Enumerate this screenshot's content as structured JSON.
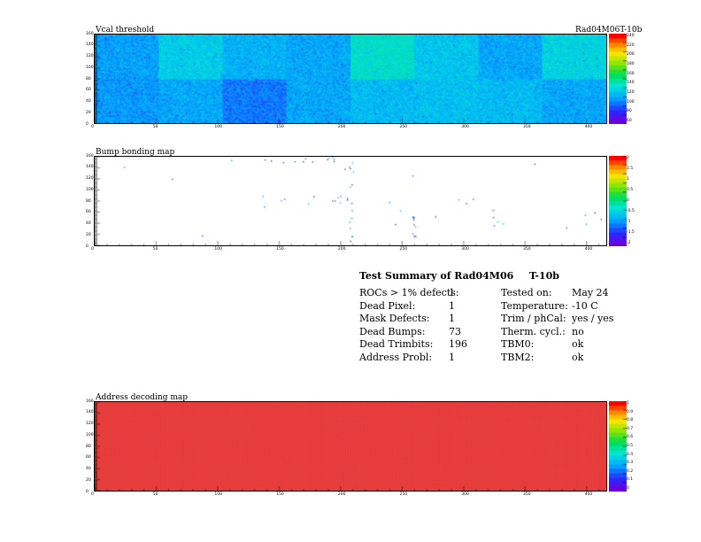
{
  "plots": {
    "vcal": {
      "title": "Vcal threshold",
      "run_label": "Rad04M06T-10b",
      "x_ticks": [
        "0",
        "50",
        "100",
        "150",
        "200",
        "250",
        "300",
        "350",
        "400"
      ],
      "y_ticks": [
        "0",
        "20",
        "40",
        "60",
        "80",
        "100",
        "120",
        "140",
        "160"
      ],
      "palette_labels": [
        "240",
        "220",
        "200",
        "180",
        "160",
        "140",
        "120",
        "100",
        "80",
        "60"
      ]
    },
    "bump": {
      "title": "Bump bonding map",
      "x_ticks": [
        "0",
        "50",
        "100",
        "150",
        "200",
        "250",
        "300",
        "350",
        "400"
      ],
      "y_ticks": [
        "0",
        "20",
        "40",
        "60",
        "80",
        "100",
        "120",
        "140",
        "160"
      ],
      "palette_labels": [
        "2",
        "1.5",
        "1",
        "0.5",
        "0",
        "-0.5",
        "-1",
        "-1.5",
        "-2"
      ]
    },
    "address": {
      "title": "Address decoding map",
      "x_ticks": [
        "0",
        "50",
        "100",
        "150",
        "200",
        "250",
        "300",
        "350",
        "400"
      ],
      "y_ticks": [
        "0",
        "20",
        "40",
        "60",
        "80",
        "100",
        "120",
        "140",
        "160"
      ],
      "palette_labels": [
        "1",
        "0.9",
        "0.8",
        "0.7",
        "0.6",
        "0.5",
        "0.4",
        "0.3",
        "0.2",
        "0.1",
        "0"
      ]
    }
  },
  "summary": {
    "title_left": "Test Summary of Rad04M06",
    "title_right": "T-10b",
    "left_rows": [
      {
        "label": "ROCs > 1% defects:",
        "value": "1"
      },
      {
        "label": "Dead Pixel:",
        "value": "1"
      },
      {
        "label": "Mask Defects:",
        "value": "1"
      },
      {
        "label": "Dead Bumps:",
        "value": "73"
      },
      {
        "label": "Dead Trimbits:",
        "value": "196"
      },
      {
        "label": "Address Probl:",
        "value": "1"
      }
    ],
    "right_rows": [
      {
        "label": "Tested on:",
        "value": "May 24"
      },
      {
        "label": "Temperature:",
        "value": "-10 C"
      },
      {
        "label": "Trim / phCal:",
        "value": "yes / yes"
      },
      {
        "label": "Therm. cycl.:",
        "value": "no"
      },
      {
        "label": "TBM0:",
        "value": "ok"
      },
      {
        "label": "TBM2:",
        "value": "ok"
      }
    ]
  },
  "chart_data": [
    {
      "type": "heatmap",
      "title": "Vcal threshold",
      "subtitle": "Rad04M06T-10b",
      "xlim": [
        0,
        416
      ],
      "ylim": [
        0,
        160
      ],
      "zlim": [
        60,
        240
      ],
      "grid": false,
      "layout": "16 ROCs of 52x80 pixels in a 2x8 arrangement",
      "roc_means_top_row": [
        110,
        125,
        115,
        112,
        135,
        122,
        112,
        128
      ],
      "roc_means_bottom_row": [
        108,
        112,
        100,
        112,
        118,
        120,
        118,
        112
      ],
      "color_scale": "rainbow, blue (low) to red (high)"
    },
    {
      "type": "heatmap",
      "title": "Bump bonding map",
      "xlim": [
        0,
        416
      ],
      "ylim": [
        0,
        160
      ],
      "zlim": [
        -2,
        2
      ],
      "grid": false,
      "dead_bumps": 73,
      "description_of_marks": "scattered isolated pixels, concentration near x 150-210 and along column x ~208 and ~260"
    },
    {
      "type": "heatmap",
      "title": "Address decoding map",
      "xlim": [
        0,
        416
      ],
      "ylim": [
        0,
        160
      ],
      "zlim": [
        0,
        1
      ],
      "grid": false,
      "fill_value": 1
    }
  ]
}
